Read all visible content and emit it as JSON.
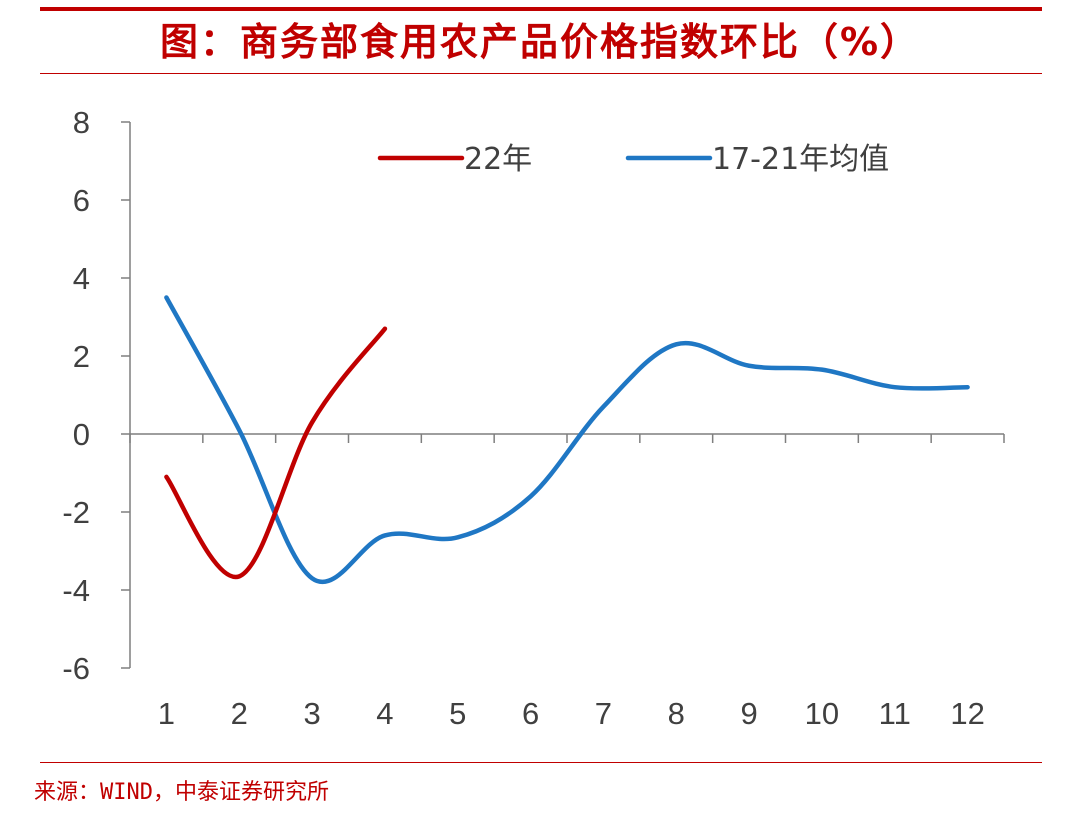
{
  "title": "图：商务部食用农产品价格指数环比（%）",
  "source": "来源：WIND，中泰证券研究所",
  "colors": {
    "accent": "#c00000",
    "axis": "#7f7f7f",
    "text": "#404040",
    "series_red": "#c00000",
    "series_blue": "#1f77c4"
  },
  "chart_data": {
    "type": "line",
    "x": [
      1,
      2,
      3,
      4,
      5,
      6,
      7,
      8,
      9,
      10,
      11,
      12
    ],
    "x_tick_labels": [
      "1",
      "2",
      "3",
      "4",
      "5",
      "6",
      "7",
      "8",
      "9",
      "10",
      "11",
      "12"
    ],
    "y_tick_labels": [
      "8",
      "6",
      "4",
      "2",
      "0",
      "-2",
      "-4",
      "-6"
    ],
    "y_ticks": [
      8,
      6,
      4,
      2,
      0,
      -2,
      -4,
      -6
    ],
    "ylim": [
      -6,
      8
    ],
    "grid": false,
    "legend_position": "top",
    "series": [
      {
        "name": "22年",
        "color": "#c00000",
        "values": [
          -1.1,
          -3.65,
          0.3,
          2.7,
          null,
          null,
          null,
          null,
          null,
          null,
          null,
          null
        ]
      },
      {
        "name": "17-21年均值",
        "color": "#1f77c4",
        "values": [
          3.5,
          0.1,
          -3.7,
          -2.6,
          -2.65,
          -1.6,
          0.7,
          2.3,
          1.75,
          1.65,
          1.2,
          1.2
        ]
      }
    ]
  }
}
